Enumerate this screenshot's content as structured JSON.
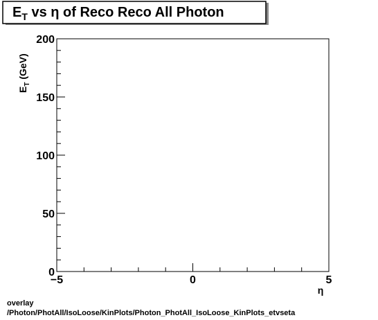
{
  "chart_data": {
    "type": "scatter",
    "title": "E_T vs  η of Reco Reco All Photon",
    "title_parts": {
      "main": "E",
      "sub": "T",
      "rest": " vs  η of Reco Reco All Photon"
    },
    "xlabel": "η",
    "ylabel": "E_T (GeV)",
    "ylabel_parts": {
      "main": "E",
      "sub": "T",
      "rest": " (GeV)"
    },
    "xlim": [
      -5,
      5
    ],
    "ylim": [
      0,
      200
    ],
    "x_ticks": [
      {
        "value": -5,
        "label": "−5"
      },
      {
        "value": 0,
        "label": "0"
      },
      {
        "value": 5,
        "label": "5"
      }
    ],
    "y_ticks": [
      {
        "value": 0,
        "label": "0"
      },
      {
        "value": 50,
        "label": "50"
      },
      {
        "value": 100,
        "label": "100"
      },
      {
        "value": 150,
        "label": "150"
      },
      {
        "value": 200,
        "label": "200"
      }
    ],
    "x_minor_step": 1,
    "y_minor_step": 10,
    "grid": false,
    "legend": "none",
    "points": []
  },
  "footer": {
    "line1": "overlay",
    "line2": "/Photon/PhotAll/IsoLoose/KinPlots/Photon_PhotAll_IsoLoose_KinPlots_etvseta"
  }
}
